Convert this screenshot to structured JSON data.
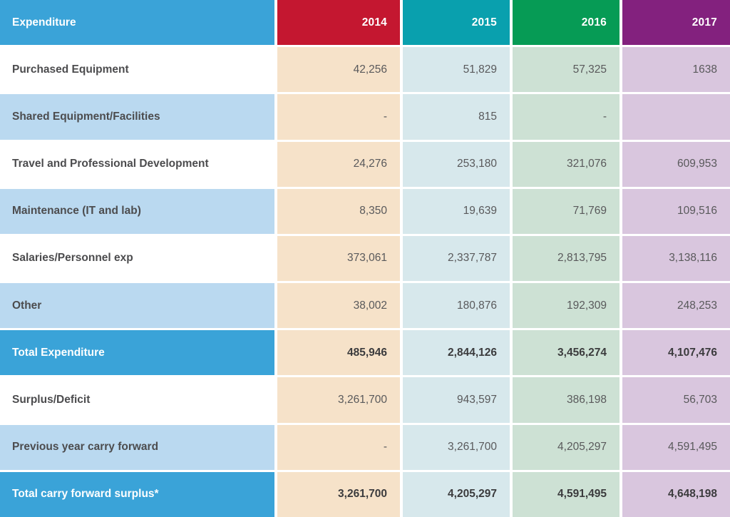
{
  "colors": {
    "header_blue": "#3AA3D8",
    "year_2014": "#C41730",
    "year_2015": "#09A0AE",
    "year_2016": "#069B55",
    "year_2017": "#83217E",
    "tint_2014": "#F6E2C9",
    "tint_2015": "#D7E8EC",
    "tint_2016": "#CDE1D4",
    "tint_2017": "#D9C6DE",
    "row_alt_blue": "#BAD9F0"
  },
  "table": {
    "header": {
      "label": "Expenditure",
      "years": [
        "2014",
        "2015",
        "2016",
        "2017"
      ]
    },
    "rows": [
      {
        "label": "Purchased Equipment",
        "values": [
          "42,256",
          "51,829",
          "57,325",
          "1638"
        ]
      },
      {
        "label": "Shared Equipment/Facilities",
        "values": [
          "-",
          "815",
          "-",
          ""
        ]
      },
      {
        "label": "Travel and Professional Development",
        "values": [
          "24,276",
          "253,180",
          "321,076",
          "609,953"
        ]
      },
      {
        "label": "Maintenance (IT and lab)",
        "values": [
          "8,350",
          "19,639",
          "71,769",
          "109,516"
        ]
      },
      {
        "label": "Salaries/Personnel exp",
        "values": [
          "373,061",
          "2,337,787",
          "2,813,795",
          "3,138,116"
        ]
      },
      {
        "label": "Other",
        "values": [
          "38,002",
          "180,876",
          "192,309",
          "248,253"
        ]
      },
      {
        "label": "Total Expenditure",
        "values": [
          "485,946",
          "2,844,126",
          "3,456,274",
          "4,107,476"
        ]
      },
      {
        "label": "Surplus/Deficit",
        "values": [
          "3,261,700",
          "943,597",
          "386,198",
          "56,703"
        ]
      },
      {
        "label": "Previous year carry forward",
        "values": [
          "-",
          "3,261,700",
          "4,205,297",
          "4,591,495"
        ]
      },
      {
        "label": "Total carry forward surplus*",
        "values": [
          "3,261,700",
          "4,205,297",
          "4,591,495",
          "4,648,198"
        ]
      }
    ]
  },
  "chart_data": {
    "type": "table",
    "title": "Expenditure",
    "columns": [
      "Expenditure",
      "2014",
      "2015",
      "2016",
      "2017"
    ],
    "rows": [
      [
        "Purchased Equipment",
        42256,
        51829,
        57325,
        1638
      ],
      [
        "Shared Equipment/Facilities",
        null,
        815,
        null,
        null
      ],
      [
        "Travel and Professional Development",
        24276,
        253180,
        321076,
        609953
      ],
      [
        "Maintenance (IT and lab)",
        8350,
        19639,
        71769,
        109516
      ],
      [
        "Salaries/Personnel exp",
        373061,
        2337787,
        2813795,
        3138116
      ],
      [
        "Other",
        38002,
        180876,
        192309,
        248253
      ],
      [
        "Total Expenditure",
        485946,
        2844126,
        3456274,
        4107476
      ],
      [
        "Surplus/Deficit",
        3261700,
        943597,
        386198,
        56703
      ],
      [
        "Previous year carry forward",
        null,
        3261700,
        4205297,
        4591495
      ],
      [
        "Total carry forward surplus*",
        3261700,
        4205297,
        4591495,
        4648198
      ]
    ]
  }
}
